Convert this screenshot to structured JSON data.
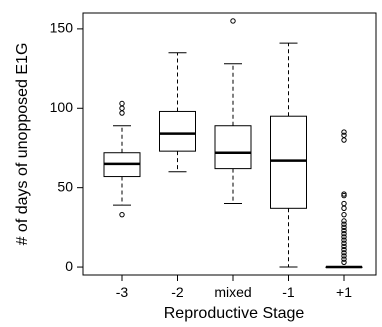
{
  "chart_data": {
    "type": "boxplot",
    "xlabel": "Reproductive Stage",
    "ylabel": "# of days of unopposed E1G",
    "ylim": [
      -5,
      160
    ],
    "yticks": [
      0,
      50,
      100,
      150
    ],
    "categories": [
      "-3",
      "-2",
      "mixed",
      "-1",
      "+1"
    ],
    "boxes": [
      {
        "category": "-3",
        "whisker_low": 39,
        "q1": 57,
        "median": 65,
        "q3": 72,
        "whisker_high": 89,
        "outliers": [
          33,
          97,
          100,
          103
        ]
      },
      {
        "category": "-2",
        "whisker_low": 60,
        "q1": 73,
        "median": 84,
        "q3": 98,
        "whisker_high": 135,
        "outliers": []
      },
      {
        "category": "mixed",
        "whisker_low": 40,
        "q1": 62,
        "median": 72,
        "q3": 89,
        "whisker_high": 128,
        "outliers": [
          155
        ]
      },
      {
        "category": "-1",
        "whisker_low": 0,
        "q1": 37,
        "median": 67,
        "q3": 95,
        "whisker_high": 141,
        "outliers": []
      },
      {
        "category": "+1",
        "whisker_low": 0,
        "q1": 0,
        "median": 0,
        "q3": 0,
        "whisker_high": 0,
        "outliers": [
          3,
          5,
          7,
          9,
          11,
          13,
          15,
          17,
          19,
          21,
          23,
          25,
          27,
          29,
          33,
          37,
          40,
          45,
          46,
          80,
          83,
          85
        ]
      }
    ],
    "grid": false,
    "legend": "none"
  }
}
